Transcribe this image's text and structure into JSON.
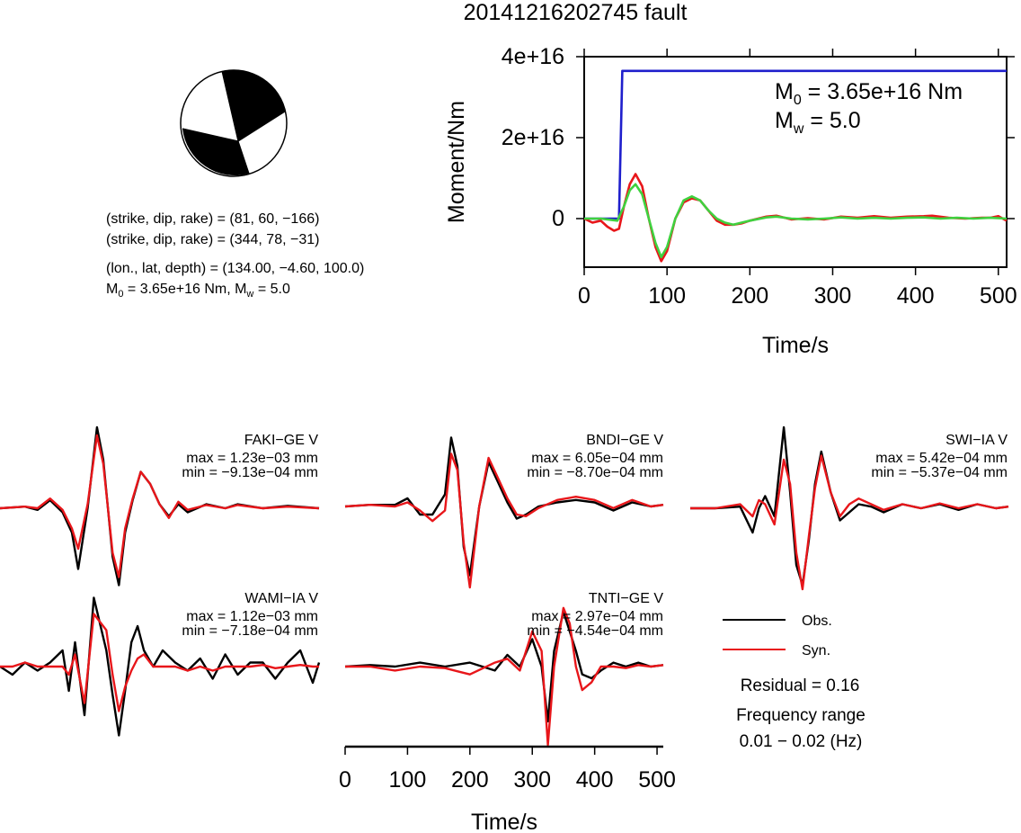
{
  "figure": {
    "title": "20141216202745 fault",
    "colors": {
      "obs": "#000000",
      "syn": "#e8161a",
      "moment": "#1f1fcc",
      "syn_stf": "#3fd13f"
    }
  },
  "mechanism": {
    "beachball_icon": "focal-mechanism-beachball",
    "line1": "(strike, dip, rake) = (81, 60, −166)",
    "line2": "(strike, dip, rake) = (344, 78, −31)",
    "line3": "(lon., lat, depth) = (134.00, −4.60, 100.0)",
    "m0_prefix": "M",
    "m0_sub": "0",
    "m0_rest": " = 3.65e+16 Nm, M",
    "mw_sub": "w",
    "mw_rest": " = 5.0"
  },
  "stf_panel": {
    "annotation_m0_prefix": "M",
    "annotation_m0_sub": "0",
    "annotation_m0_rest": " = 3.65e+16 Nm",
    "annotation_mw_prefix": "M",
    "annotation_mw_sub": "w",
    "annotation_mw_rest": " = 5.0"
  },
  "waveform_panels": [
    {
      "station": "FAKI−GE V",
      "max": "max = 1.23e−03 mm",
      "min": "min = −9.13e−04 mm"
    },
    {
      "station": "BNDI−GE V",
      "max": "max = 6.05e−04 mm",
      "min": "min = −8.70e−04 mm"
    },
    {
      "station": "SWI−IA V",
      "max": "max = 5.42e−04 mm",
      "min": "min = −5.37e−04 mm"
    },
    {
      "station": "WAMI−IA V",
      "max": "max = 1.12e−03 mm",
      "min": "min = −7.18e−04 mm"
    },
    {
      "station": "TNTI−GE V",
      "max": "max = 2.97e−04 mm",
      "min": "min = −4.54e−04 mm"
    }
  ],
  "legend": {
    "obs_label": "Obs.",
    "syn_label": "Syn.",
    "residual": "Residual = 0.16",
    "freq_title": "Frequency range",
    "freq_range": "0.01 − 0.02 (Hz)"
  },
  "chart_data": [
    {
      "type": "line",
      "xlabel": "Time/s",
      "ylabel": "Moment/Nm",
      "xlim": [
        0,
        510
      ],
      "ylim": [
        -1.2e+16,
        4e+16
      ],
      "xticks": [
        0,
        100,
        200,
        300,
        400,
        500
      ],
      "xtick_labels": [
        "0",
        "100",
        "200",
        "300",
        "400",
        "500"
      ],
      "yticks": [
        0,
        2e+16,
        4e+16
      ],
      "ytick_labels": [
        "0",
        "2e+16",
        "4e+16"
      ],
      "series": [
        {
          "color": "#1f1fcc",
          "x": [
            0,
            42,
            46,
            47,
            510
          ],
          "y": [
            0,
            0,
            3.65e+16,
            3.65e+16,
            3.65e+16
          ]
        },
        {
          "color": "#e8161a",
          "x": [
            0,
            10,
            20,
            28,
            36,
            42,
            48,
            55,
            62,
            70,
            78,
            86,
            93,
            100,
            110,
            120,
            130,
            140,
            150,
            160,
            170,
            180,
            190,
            200,
            220,
            232,
            250,
            270,
            290,
            310,
            330,
            350,
            370,
            390,
            410,
            420,
            440,
            460,
            480,
            490,
            500,
            510
          ],
          "y": [
            0,
            -1000000000000000.0,
            -500000000000000.0,
            -2000000000000000.0,
            -3000000000000000.0,
            -2500000000000000.0,
            3000000000000000.0,
            8500000000000000.0,
            1.1e+16,
            8000000000000000.0,
            0,
            -7000000000000000.0,
            -1.05e+16,
            -8000000000000000.0,
            0,
            4000000000000000.0,
            5000000000000000.0,
            4500000000000000.0,
            2000000000000000.0,
            -500000000000000.0,
            -1500000000000000.0,
            -1500000000000000.0,
            -1200000000000000.0,
            -500000000000000.0,
            500000000000000.0,
            700000000000000.0,
            -200000000000000.0,
            100000000000000.0,
            -200000000000000.0,
            500000000000000.0,
            200000000000000.0,
            600000000000000.0,
            200000000000000.0,
            500000000000000.0,
            600000000000000.0,
            700000000000000.0,
            200000000000000.0,
            0.0,
            200000000000000.0,
            200000000000000.0,
            600000000000000.0,
            -500000000000000.0
          ]
        },
        {
          "color": "#3fd13f",
          "x": [
            0,
            20,
            40,
            48,
            55,
            62,
            70,
            78,
            86,
            93,
            100,
            110,
            120,
            130,
            140,
            150,
            160,
            170,
            180,
            190,
            200,
            220,
            232,
            250,
            270,
            290,
            310,
            330,
            350,
            370,
            390,
            410,
            430,
            450,
            470,
            490,
            510
          ],
          "y": [
            0,
            0,
            -500000000000000.0,
            3000000000000000.0,
            7000000000000000.0,
            8500000000000000.0,
            6000000000000000.0,
            0,
            -6000000000000000.0,
            -9500000000000000.0,
            -7000000000000000.0,
            0,
            4500000000000000.0,
            5500000000000000.0,
            4500000000000000.0,
            2000000000000000.0,
            0,
            -1000000000000000.0,
            -1500000000000000.0,
            -1000000000000000.0,
            -500000000000000.0,
            300000000000000.0,
            500000000000000.0,
            0,
            -200000000000000.0,
            0.0,
            300000000000000.0,
            0.0,
            200000000000000.0,
            0.0,
            200000000000000.0,
            300000000000000.0,
            0.0,
            200000000000000.0,
            0.0,
            200000000000000.0,
            0.0
          ]
        }
      ]
    },
    {
      "type": "line",
      "xlabel": "Time/s",
      "xlim": [
        0,
        510
      ],
      "xticks": [
        0,
        100,
        200,
        300,
        400,
        500
      ],
      "xtick_labels": [
        "0",
        "100",
        "200",
        "300",
        "400",
        "500"
      ],
      "panels": [
        {
          "station": "FAKI−GE V",
          "obs": {
            "x": [
              0,
              40,
              60,
              80,
              100,
              115,
              125,
              140,
              155,
              165,
              180,
              190,
              200,
              212,
              225,
              240,
              255,
              270,
              285,
              300,
              330,
              360,
              380,
              420,
              460,
              510
            ],
            "y": [
              0,
              0.02,
              -0.02,
              0.1,
              -0.05,
              -0.3,
              -0.75,
              0.0,
              1.0,
              0.6,
              -0.6,
              -0.95,
              -0.3,
              0.1,
              0.45,
              0.3,
              0.05,
              -0.1,
              0.05,
              -0.05,
              0.05,
              0.0,
              0.05,
              0.0,
              0.03,
              0.0
            ]
          },
          "syn": {
            "x": [
              0,
              40,
              60,
              80,
              100,
              115,
              125,
              140,
              155,
              165,
              180,
              190,
              200,
              212,
              225,
              240,
              255,
              270,
              285,
              300,
              330,
              360,
              380,
              420,
              460,
              510
            ],
            "y": [
              0,
              0.02,
              0.0,
              0.12,
              -0.02,
              -0.25,
              -0.5,
              0.05,
              0.9,
              0.55,
              -0.55,
              -0.85,
              -0.25,
              0.12,
              0.45,
              0.3,
              0.05,
              -0.12,
              0.08,
              -0.02,
              0.04,
              0.0,
              0.04,
              0.0,
              0.02,
              0.0
            ]
          }
        },
        {
          "station": "BNDI−GE V",
          "obs": {
            "x": [
              0,
              40,
              80,
              100,
              120,
              140,
              160,
              170,
              180,
              190,
              200,
              215,
              230,
              245,
              260,
              275,
              290,
              310,
              340,
              370,
              400,
              430,
              460,
              490,
              510
            ],
            "y": [
              0,
              0.02,
              0.02,
              0.1,
              -0.1,
              -0.1,
              0.15,
              0.85,
              0.5,
              -0.5,
              -0.85,
              0.0,
              0.55,
              0.3,
              0.05,
              -0.15,
              -0.1,
              0.0,
              0.05,
              0.08,
              0.05,
              -0.05,
              0.05,
              0.0,
              0.02
            ]
          },
          "syn": {
            "x": [
              0,
              40,
              80,
              100,
              120,
              140,
              160,
              170,
              180,
              190,
              200,
              215,
              230,
              245,
              260,
              275,
              290,
              310,
              340,
              370,
              400,
              430,
              460,
              490,
              510
            ],
            "y": [
              0,
              0.02,
              0.0,
              0.05,
              -0.05,
              -0.18,
              -0.05,
              0.65,
              0.45,
              -0.45,
              -1.0,
              0.0,
              0.6,
              0.35,
              0.1,
              -0.1,
              -0.12,
              -0.02,
              0.08,
              0.12,
              0.08,
              -0.02,
              0.08,
              0.0,
              0.02
            ]
          }
        },
        {
          "station": "SWI−IA V",
          "obs": {
            "x": [
              0,
              40,
              80,
              100,
              110,
              120,
              135,
              150,
              160,
              170,
              180,
              190,
              200,
              210,
              225,
              240,
              255,
              270,
              290,
              310,
              340,
              370,
              400,
              430,
              460,
              490,
              510
            ],
            "y": [
              0,
              0.0,
              0.02,
              -0.3,
              0.0,
              0.15,
              -0.1,
              1.0,
              0.2,
              -0.7,
              -0.95,
              -0.4,
              0.3,
              0.7,
              0.2,
              -0.15,
              -0.05,
              0.05,
              0.02,
              -0.05,
              0.05,
              0.0,
              0.05,
              -0.02,
              0.05,
              0.0,
              0.02
            ]
          },
          "syn": {
            "x": [
              0,
              40,
              80,
              100,
              110,
              120,
              135,
              150,
              160,
              170,
              180,
              190,
              200,
              210,
              225,
              240,
              255,
              270,
              290,
              310,
              340,
              370,
              400,
              430,
              460,
              490,
              510
            ],
            "y": [
              0,
              0.0,
              0.05,
              -0.1,
              0.1,
              0.05,
              -0.2,
              0.6,
              0.3,
              -0.55,
              -1.0,
              -0.35,
              0.25,
              0.65,
              0.2,
              -0.1,
              0.05,
              0.12,
              0.05,
              -0.02,
              0.05,
              0.0,
              0.06,
              0.0,
              0.05,
              0.0,
              0.02
            ]
          }
        },
        {
          "station": "WAMI−IA V",
          "obs": {
            "x": [
              0,
              20,
              40,
              60,
              80,
              100,
              110,
              120,
              135,
              150,
              170,
              180,
              190,
              200,
              210,
              220,
              230,
              245,
              260,
              280,
              300,
              320,
              340,
              360,
              380,
              400,
              420,
              440,
              460,
              480,
              500,
              510
            ],
            "y": [
              0,
              -0.1,
              0.05,
              -0.05,
              0.05,
              0.2,
              -0.3,
              0.3,
              -0.6,
              0.85,
              0.2,
              -0.35,
              -0.85,
              -0.3,
              0.3,
              0.5,
              0.2,
              0.0,
              0.2,
              0.05,
              -0.05,
              0.1,
              -0.15,
              0.15,
              -0.1,
              0.05,
              0.05,
              -0.15,
              0.05,
              0.2,
              -0.2,
              0.05
            ]
          },
          "syn": {
            "x": [
              0,
              20,
              40,
              60,
              80,
              100,
              110,
              120,
              135,
              150,
              170,
              180,
              190,
              200,
              210,
              220,
              230,
              245,
              260,
              280,
              300,
              320,
              340,
              360,
              380,
              400,
              420,
              440,
              460,
              480,
              500,
              510
            ],
            "y": [
              0,
              0.0,
              0.05,
              0.0,
              0.0,
              0.0,
              -0.1,
              0.15,
              -0.45,
              0.65,
              0.45,
              -0.1,
              -0.55,
              -0.25,
              -0.05,
              0.1,
              0.15,
              0.0,
              0.0,
              0.0,
              -0.05,
              0.0,
              -0.05,
              0.0,
              0.0,
              0.0,
              0.02,
              -0.02,
              0.0,
              0.02,
              0.0,
              0.0
            ]
          }
        },
        {
          "station": "TNTI−GE V",
          "obs": {
            "x": [
              0,
              40,
              80,
              120,
              160,
              200,
              240,
              260,
              280,
              300,
              315,
              325,
              335,
              350,
              360,
              370,
              380,
              395,
              410,
              430,
              450,
              470,
              490,
              510
            ],
            "y": [
              0,
              0.02,
              0.0,
              0.05,
              0.0,
              0.05,
              -0.05,
              0.15,
              0.0,
              0.35,
              0.0,
              -0.7,
              0.2,
              0.7,
              0.45,
              0.2,
              -0.1,
              -0.15,
              -0.05,
              0.05,
              0.0,
              0.05,
              0.0,
              0.02
            ]
          },
          "syn": {
            "x": [
              0,
              40,
              80,
              120,
              160,
              200,
              240,
              260,
              280,
              300,
              315,
              325,
              335,
              350,
              360,
              370,
              380,
              395,
              410,
              430,
              450,
              470,
              490,
              510
            ],
            "y": [
              0,
              0.0,
              -0.05,
              0.0,
              -0.02,
              -0.1,
              0.05,
              0.1,
              -0.05,
              0.45,
              0.2,
              -1.0,
              0.0,
              0.75,
              0.55,
              0.0,
              -0.3,
              -0.2,
              0.0,
              0.0,
              -0.02,
              0.02,
              0.0,
              0.02
            ]
          }
        }
      ]
    }
  ]
}
